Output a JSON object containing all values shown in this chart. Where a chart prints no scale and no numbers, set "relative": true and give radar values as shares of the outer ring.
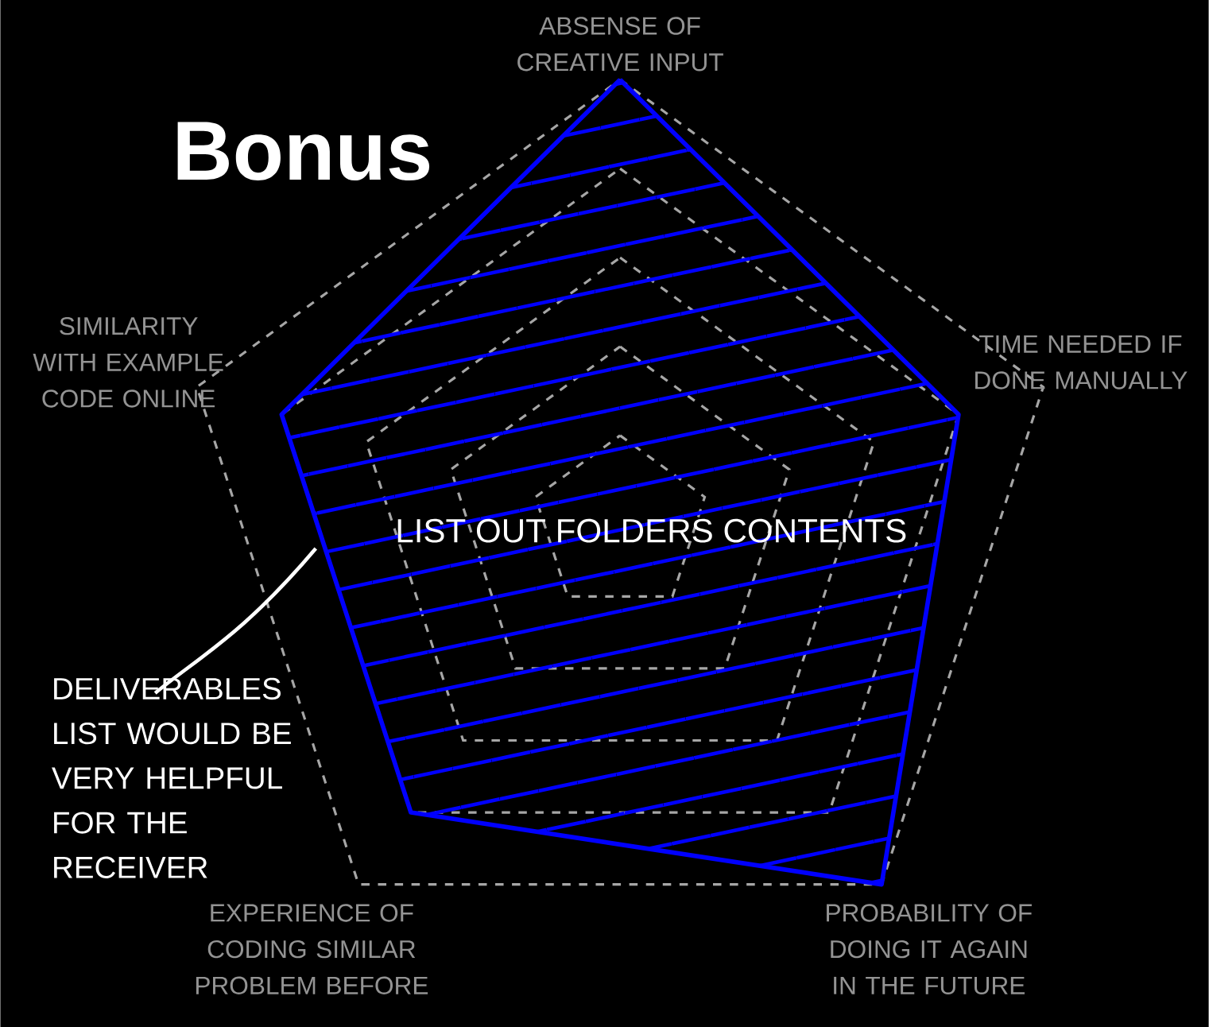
{
  "chart_data": {
    "type": "radar",
    "title": "Bonus",
    "relative": true,
    "grid": true,
    "categories": [
      "ABSENSE OF CREATIVE INPUT",
      "TIME NEEDED IF DONE MANUALLY",
      "PROBABILITY OF DOING IT AGAIN IN THE FUTURE",
      "EXPERIENCE OF CODING SIMILAR PROBLEM BEFORE",
      "SIMILARITY WITH EXAMPLE CODE ONLINE"
    ],
    "series": [
      {
        "name": "LIST OUT FOLDERS CONTENTS",
        "color": "#0000ff",
        "values": [
          1.0,
          0.8,
          1.0,
          0.8,
          0.8
        ]
      }
    ],
    "annotations": [
      "DELIVERABLES LIST WOULD BE VERY HELPFUL FOR THE RECEIVER"
    ]
  }
}
